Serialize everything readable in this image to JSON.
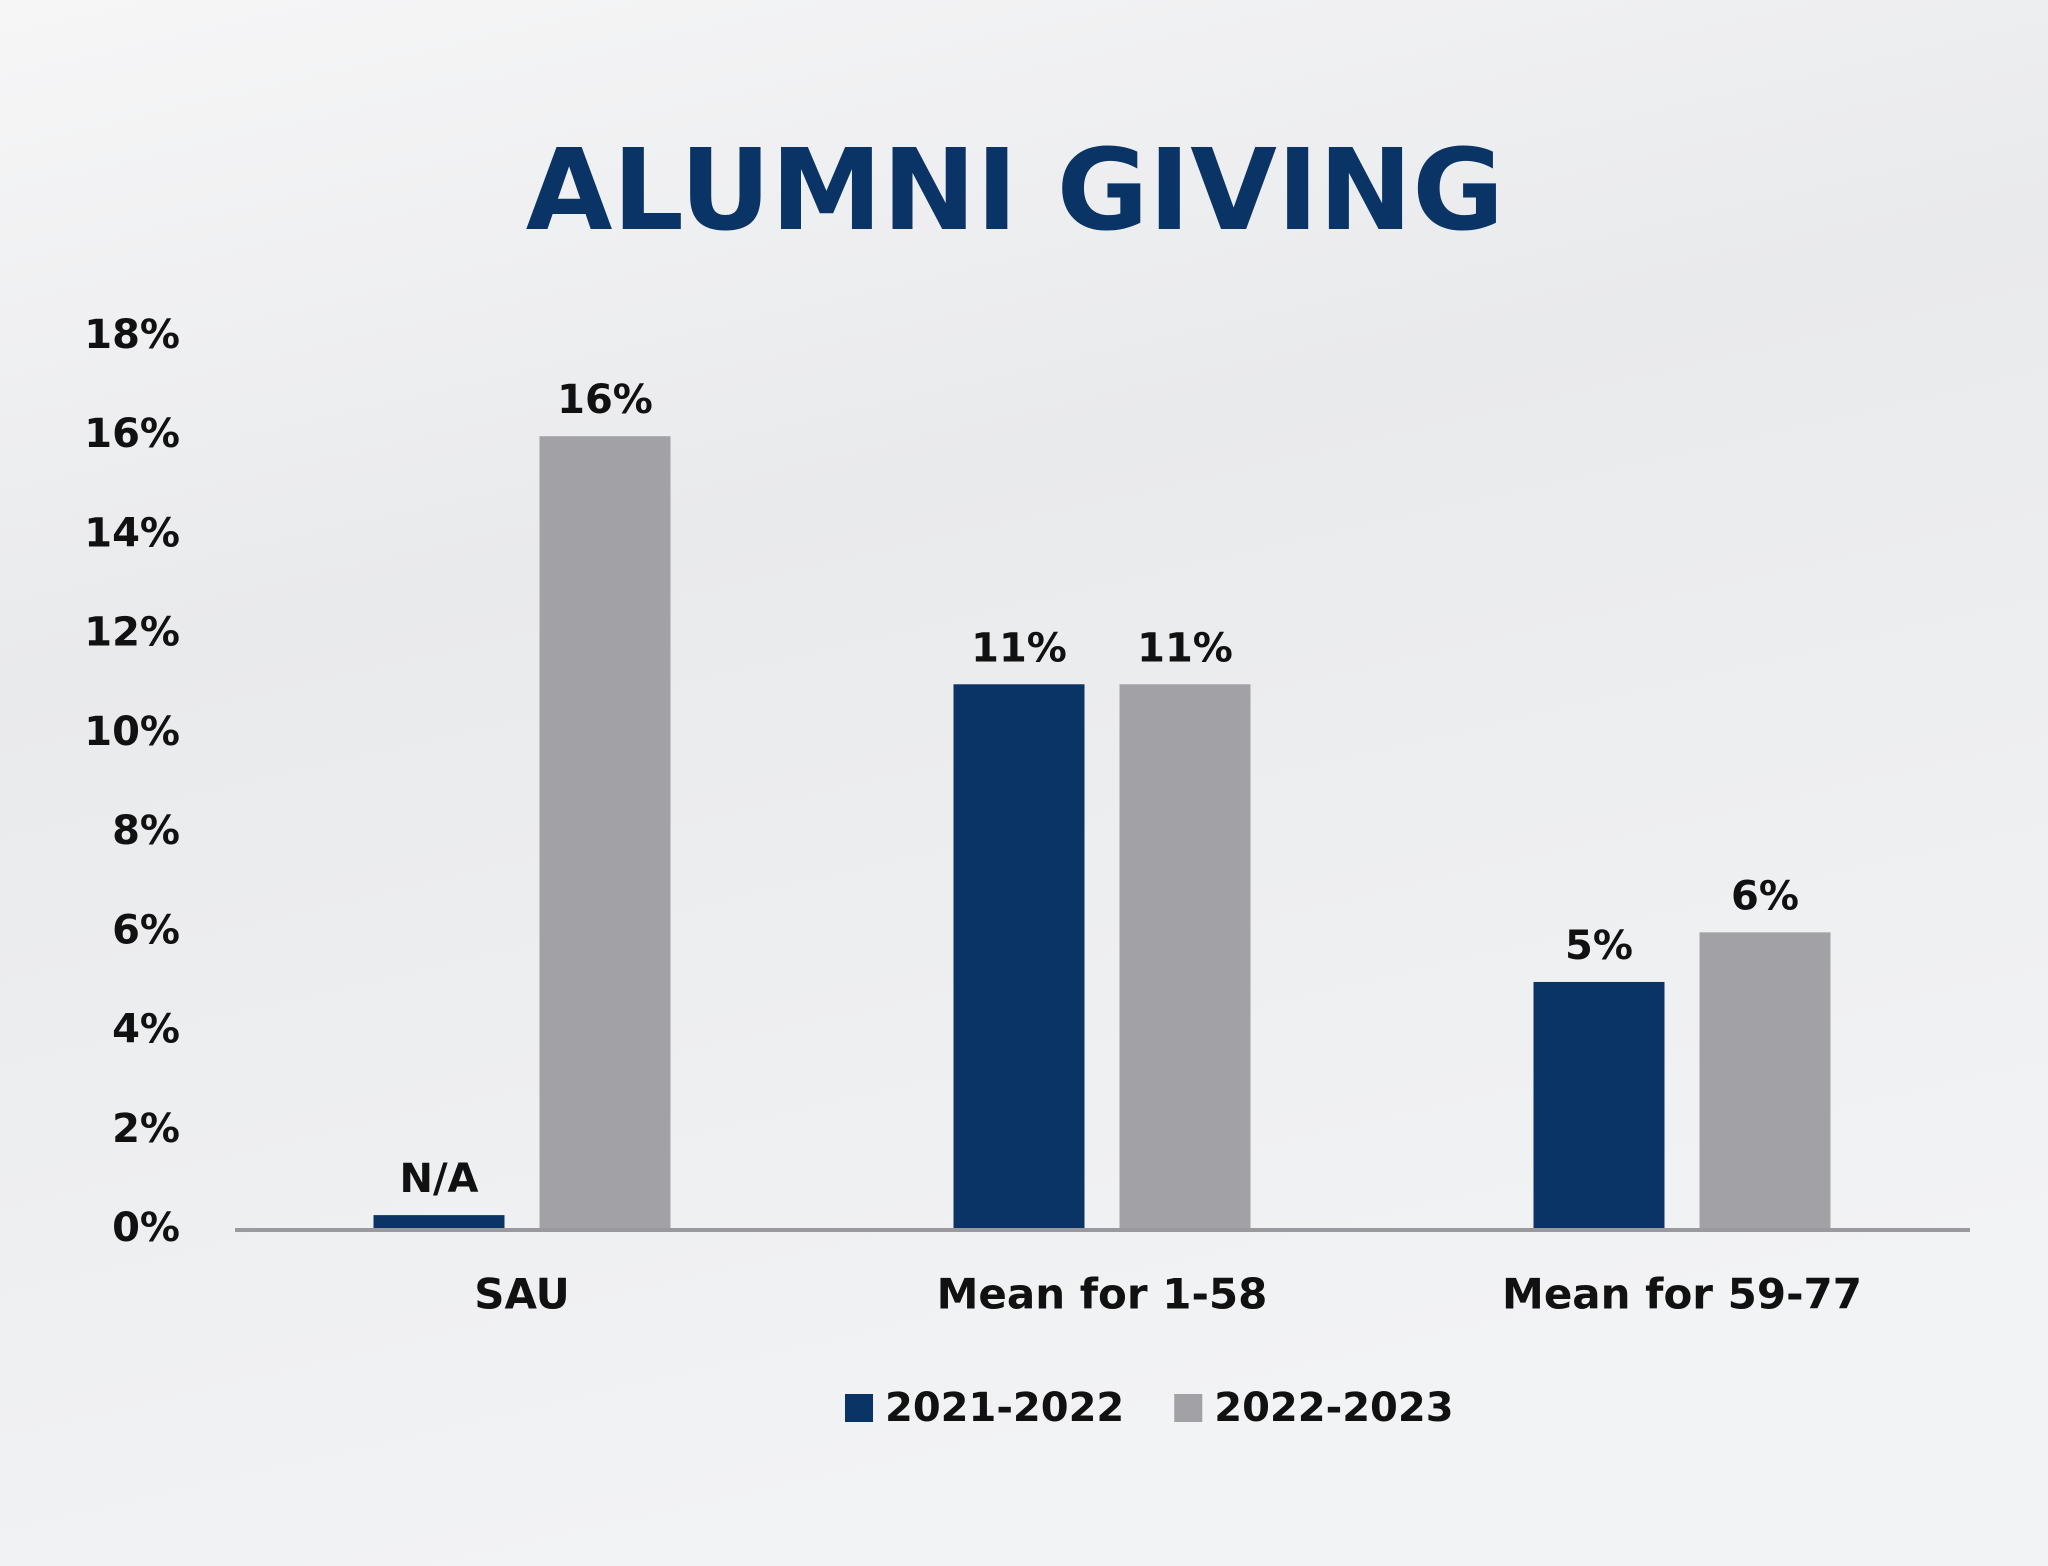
{
  "chart_data": {
    "type": "bar",
    "title": "ALUMNI GIVING",
    "categories": [
      "SAU",
      "Mean for 1-58",
      "Mean for 59-77"
    ],
    "series": [
      {
        "name": "2021-2022",
        "color": "#0b3466",
        "values": [
          0.3,
          11,
          5
        ],
        "value_labels": [
          "N/A",
          "11%",
          "5%"
        ]
      },
      {
        "name": "2022-2023",
        "color": "#a2a2a6",
        "values": [
          16,
          11,
          6
        ],
        "value_labels": [
          "16%",
          "11%",
          "6%"
        ]
      }
    ],
    "ylim": [
      0,
      18
    ],
    "yticks": [
      {
        "value": 0,
        "label": "0%"
      },
      {
        "value": 2,
        "label": "2%"
      },
      {
        "value": 4,
        "label": "4%"
      },
      {
        "value": 6,
        "label": "6%"
      },
      {
        "value": 8,
        "label": "8%"
      },
      {
        "value": 10,
        "label": "10%"
      },
      {
        "value": 12,
        "label": "12%"
      },
      {
        "value": 14,
        "label": "14%"
      },
      {
        "value": 16,
        "label": "16%"
      },
      {
        "value": 18,
        "label": "18%"
      }
    ],
    "grid": false,
    "legend": "bottom"
  }
}
